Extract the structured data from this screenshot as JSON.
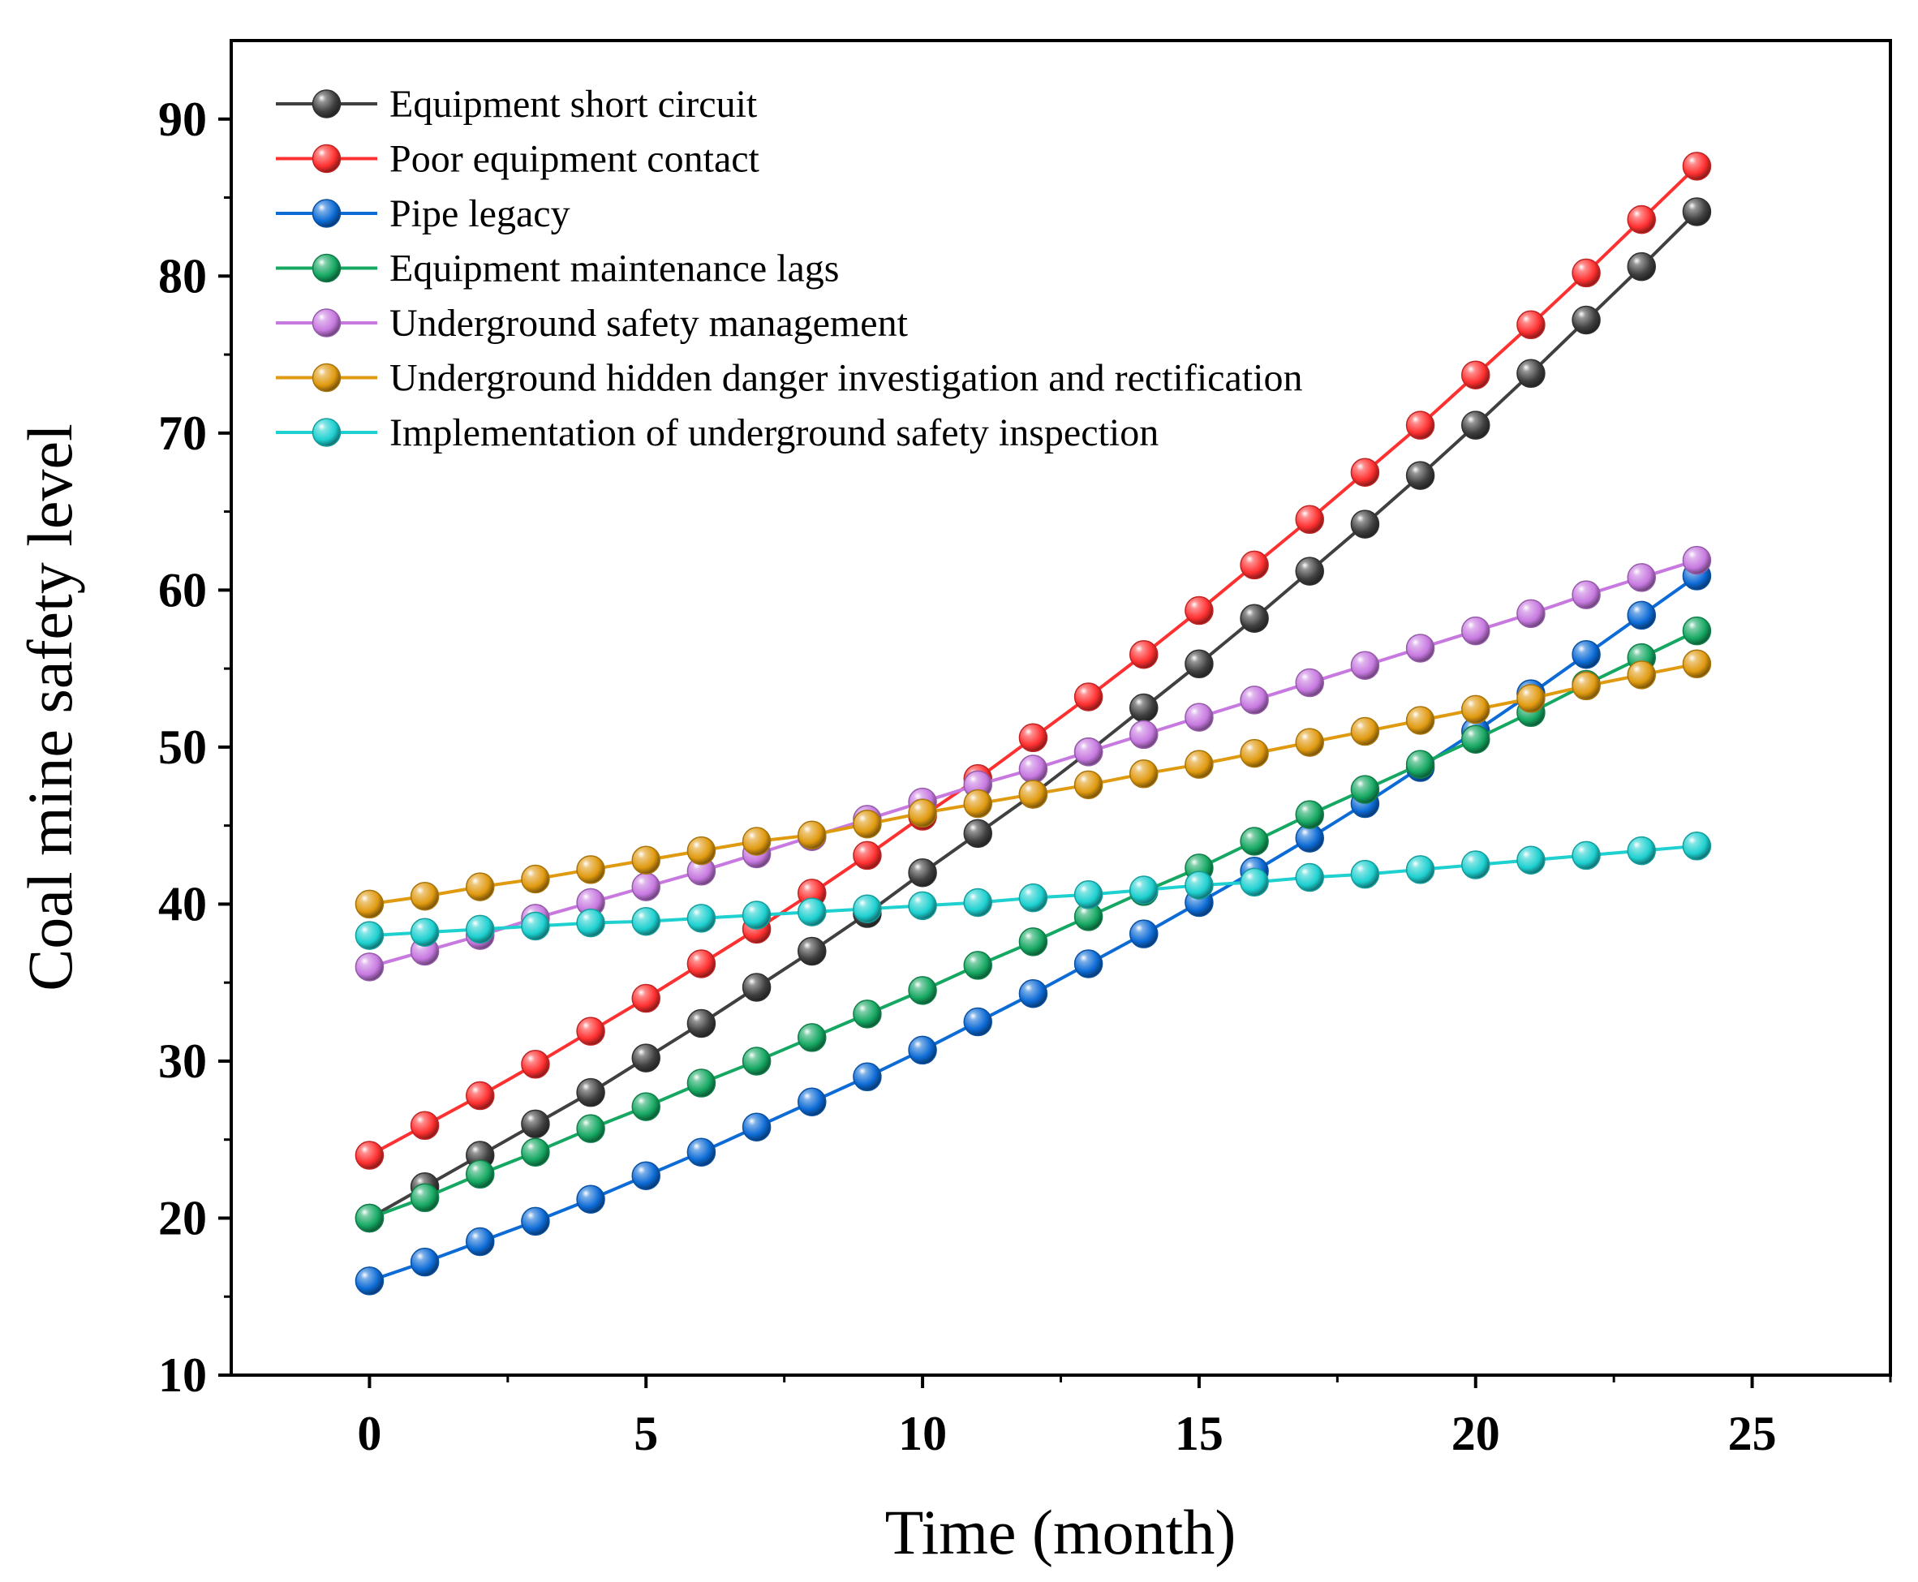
{
  "chart_data": {
    "type": "line",
    "xlabel": "Time (month)",
    "ylabel": "Coal mine safety level",
    "xlim": [
      -2.5,
      27.5
    ],
    "ylim": [
      10,
      95
    ],
    "xticks": [
      0,
      5,
      10,
      15,
      20,
      25
    ],
    "yticks": [
      10,
      20,
      30,
      40,
      50,
      60,
      70,
      80,
      90
    ],
    "xtick_labels": [
      "0",
      "5",
      "10",
      "15",
      "20",
      "25"
    ],
    "ytick_labels": [
      "10",
      "20",
      "30",
      "40",
      "50",
      "60",
      "70",
      "80",
      "90"
    ],
    "grid": false,
    "legend_position": "top-left",
    "x": [
      0,
      1,
      2,
      3,
      4,
      5,
      6,
      7,
      8,
      9,
      10,
      11,
      12,
      13,
      14,
      15,
      16,
      17,
      18,
      19,
      20,
      21,
      22,
      23,
      24
    ],
    "series": [
      {
        "name": "Equipment short circuit",
        "color": "#404040",
        "values": [
          20.0,
          22.0,
          24.0,
          26.0,
          28.0,
          30.2,
          32.4,
          34.7,
          37.0,
          39.4,
          42.0,
          44.5,
          47.0,
          49.7,
          52.5,
          55.3,
          58.2,
          61.2,
          64.2,
          67.3,
          70.5,
          73.8,
          77.2,
          80.6,
          84.1
        ]
      },
      {
        "name": "Poor equipment contact",
        "color": "#ff3030",
        "values": [
          24.0,
          25.9,
          27.8,
          29.8,
          31.9,
          34.0,
          36.2,
          38.4,
          40.7,
          43.1,
          45.6,
          48.0,
          50.6,
          53.2,
          55.9,
          58.7,
          61.6,
          64.5,
          67.5,
          70.5,
          73.7,
          76.9,
          80.2,
          83.6,
          87.0
        ]
      },
      {
        "name": "Pipe legacy",
        "color": "#0d6bd6",
        "values": [
          16.0,
          17.2,
          18.5,
          19.8,
          21.2,
          22.7,
          24.2,
          25.8,
          27.4,
          29.0,
          30.7,
          32.5,
          34.3,
          36.2,
          38.1,
          40.1,
          42.1,
          44.2,
          46.4,
          48.7,
          51.0,
          53.4,
          55.9,
          58.4,
          60.9
        ]
      },
      {
        "name": "Equipment maintenance lags",
        "color": "#16a862",
        "values": [
          20.0,
          21.3,
          22.8,
          24.2,
          25.7,
          27.1,
          28.6,
          30.0,
          31.5,
          33.0,
          34.5,
          36.1,
          37.6,
          39.2,
          40.8,
          42.3,
          44.0,
          45.7,
          47.3,
          48.9,
          50.5,
          52.2,
          54.0,
          55.7,
          57.4
        ]
      },
      {
        "name": "Underground safety management",
        "color": "#c779e0",
        "values": [
          36.0,
          37.0,
          38.0,
          39.1,
          40.1,
          41.1,
          42.1,
          43.2,
          44.3,
          45.4,
          46.5,
          47.6,
          48.6,
          49.7,
          50.8,
          51.9,
          53.0,
          54.1,
          55.2,
          56.3,
          57.4,
          58.5,
          59.7,
          60.8,
          61.9
        ]
      },
      {
        "name": "Underground hidden danger investigation and rectification",
        "color": "#e09a10",
        "values": [
          40.0,
          40.5,
          41.1,
          41.6,
          42.2,
          42.8,
          43.4,
          44.0,
          44.4,
          45.1,
          45.8,
          46.4,
          47.0,
          47.6,
          48.3,
          48.9,
          49.6,
          50.3,
          51.0,
          51.7,
          52.4,
          53.1,
          53.9,
          54.6,
          55.3
        ]
      },
      {
        "name": "Implementation of underground safety inspection",
        "color": "#1ed0d0",
        "values": [
          38.0,
          38.2,
          38.4,
          38.6,
          38.8,
          38.9,
          39.1,
          39.3,
          39.5,
          39.7,
          39.9,
          40.1,
          40.4,
          40.6,
          40.9,
          41.2,
          41.4,
          41.7,
          41.9,
          42.2,
          42.5,
          42.8,
          43.1,
          43.4,
          43.7
        ]
      }
    ]
  }
}
